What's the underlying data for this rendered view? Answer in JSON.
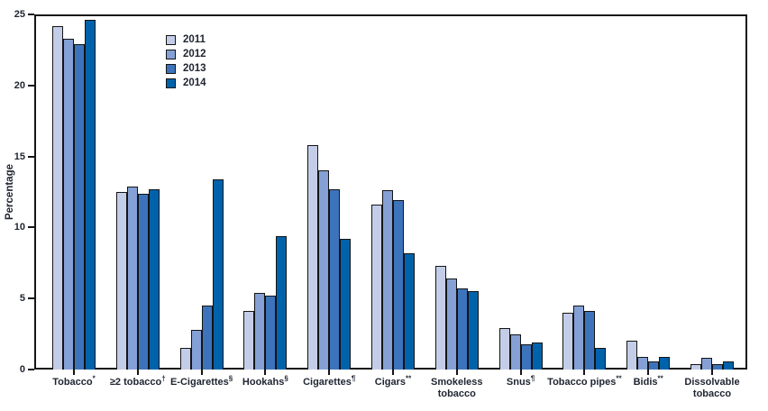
{
  "chart_data": {
    "type": "bar",
    "title": "",
    "xlabel": "",
    "ylabel": "Percentage",
    "ylim": [
      0,
      25
    ],
    "yticks": [
      0,
      5,
      10,
      15,
      20,
      25
    ],
    "grid": false,
    "legend_position": "top-left-inside",
    "categories": [
      {
        "label": "Tobacco",
        "sup": "*"
      },
      {
        "label": "≥2 tobacco",
        "sup": "†"
      },
      {
        "label": "E-Cigarettes",
        "sup": "§"
      },
      {
        "label": "Hookahs",
        "sup": "§"
      },
      {
        "label": "Cigarettes",
        "sup": "¶"
      },
      {
        "label": "Cigars",
        "sup": "**"
      },
      {
        "label": "Smokeless tobacco",
        "sup": ""
      },
      {
        "label": "Snus",
        "sup": "¶"
      },
      {
        "label": "Tobacco pipes",
        "sup": "**"
      },
      {
        "label": "Bidis",
        "sup": "**"
      },
      {
        "label": "Dissolvable tobacco",
        "sup": ""
      }
    ],
    "series": [
      {
        "name": "2011",
        "color": "#c3cde8",
        "values": [
          24.2,
          12.5,
          1.5,
          4.1,
          15.8,
          11.6,
          7.3,
          2.9,
          4.0,
          2.0,
          0.4
        ]
      },
      {
        "name": "2012",
        "color": "#84a0d4",
        "values": [
          23.3,
          12.9,
          2.8,
          5.4,
          14.0,
          12.6,
          6.4,
          2.5,
          4.5,
          0.9,
          0.8
        ]
      },
      {
        "name": "2013",
        "color": "#3d73ba",
        "values": [
          22.9,
          12.4,
          4.5,
          5.2,
          12.7,
          11.9,
          5.7,
          1.8,
          4.1,
          0.6,
          0.4
        ]
      },
      {
        "name": "2014",
        "color": "#0062aa",
        "values": [
          24.6,
          12.7,
          13.4,
          9.4,
          9.2,
          8.2,
          5.5,
          1.9,
          1.5,
          0.9,
          0.6
        ]
      }
    ]
  },
  "colors": {
    "axis": "#161616",
    "bar_border": "#141414",
    "text": "#1e2430",
    "background": "#ffffff"
  }
}
